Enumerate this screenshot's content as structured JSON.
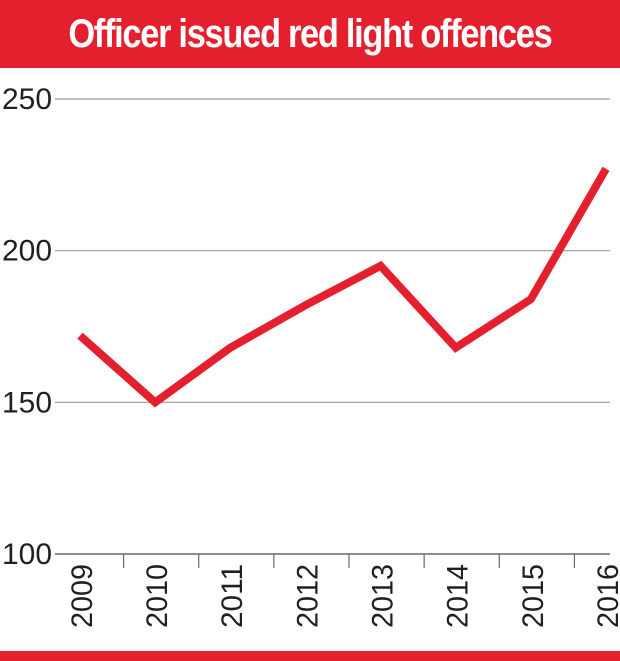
{
  "title": "Officer issued red light offences",
  "colors": {
    "accent": "#e4202e",
    "grid": "#9a9a9a",
    "text": "#231f20"
  },
  "chart_data": {
    "type": "line",
    "title": "Officer issued red light offences",
    "xlabel": "",
    "ylabel": "",
    "categories": [
      "2009",
      "2010",
      "2011",
      "2012",
      "2013",
      "2014",
      "2015",
      "2016"
    ],
    "series": [
      {
        "values": [
          172,
          150,
          168,
          182,
          195,
          168,
          184,
          227
        ]
      }
    ],
    "ylim": [
      100,
      250
    ],
    "yticks": [
      "100",
      "150",
      "200",
      "250"
    ],
    "grid": true,
    "legend": "none"
  }
}
